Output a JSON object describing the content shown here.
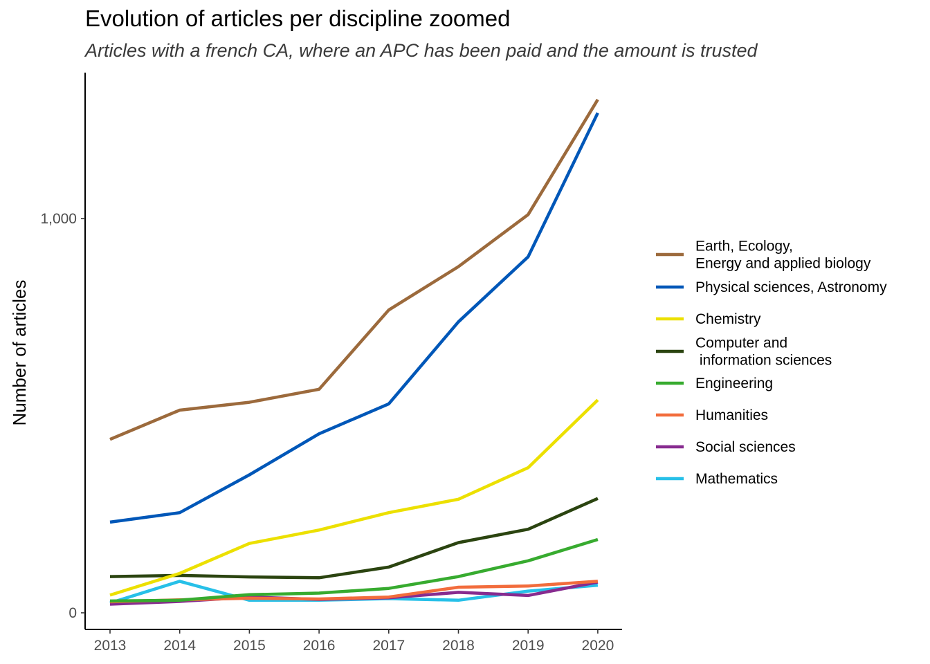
{
  "chart_data": {
    "type": "line",
    "title": "Evolution of articles per discipline zoomed",
    "subtitle": "Articles with a french CA, where an APC has been paid and the amount is trusted",
    "xlabel": "",
    "ylabel": "Number of articles",
    "x": [
      "2013",
      "2014",
      "2015",
      "2016",
      "2017",
      "2018",
      "2019",
      "2020"
    ],
    "y_ticks": [
      {
        "value": 0,
        "label": "0"
      },
      {
        "value": 1000,
        "label": "1,000"
      }
    ],
    "ylim": [
      -40,
      1360
    ],
    "grid": false,
    "legend_position": "right",
    "series": [
      {
        "name": "Earth, Ecology,\nEnergy and applied biology",
        "color": "#9c6a3c",
        "values": [
          440,
          514,
          534,
          567,
          768,
          878,
          1010,
          1302
        ]
      },
      {
        "name": "Physical sciences, Astronomy",
        "color": "#0057b8",
        "values": [
          230,
          254,
          350,
          454,
          530,
          738,
          903,
          1268
        ]
      },
      {
        "name": "Chemistry",
        "color": "#ece000",
        "values": [
          45,
          100,
          176,
          210,
          254,
          288,
          368,
          540
        ]
      },
      {
        "name": "Computer and\n information sciences",
        "color": "#2b4410",
        "values": [
          92,
          95,
          91,
          89,
          116,
          178,
          212,
          290
        ]
      },
      {
        "name": "Engineering",
        "color": "#37ab2f",
        "values": [
          30,
          32,
          46,
          50,
          62,
          92,
          132,
          186
        ]
      },
      {
        "name": "Humanities",
        "color": "#f26c3c",
        "values": [
          28,
          33,
          37,
          35,
          40,
          65,
          68,
          80
        ]
      },
      {
        "name": "Social sciences",
        "color": "#872b8f",
        "values": [
          22,
          29,
          40,
          34,
          38,
          52,
          44,
          78
        ]
      },
      {
        "name": "Mathematics",
        "color": "#27c0e8",
        "values": [
          25,
          80,
          32,
          32,
          36,
          32,
          55,
          70
        ]
      }
    ]
  }
}
